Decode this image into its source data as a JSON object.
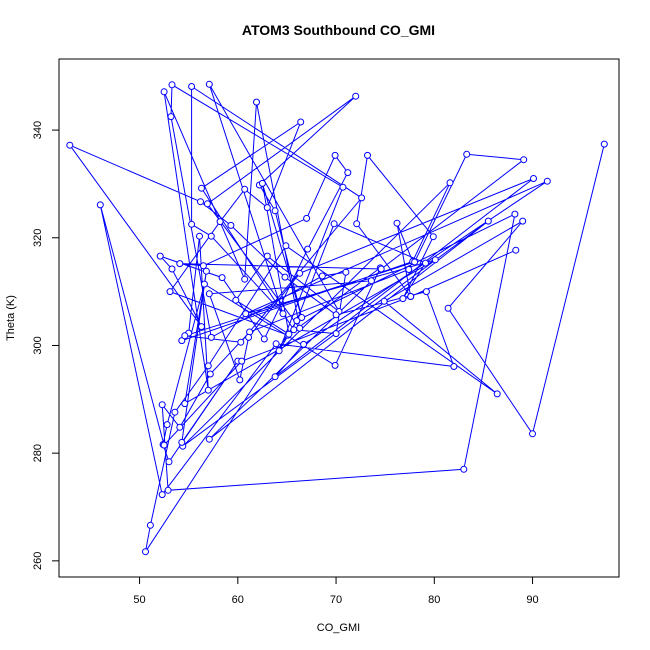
{
  "chart_data": {
    "type": "line",
    "title": "ATOM3 Southbound CO_GMI",
    "xlabel": "CO_GMI",
    "ylabel": "Theta (K)",
    "xlim": [
      41.8,
      98.8
    ],
    "ylim": [
      257.0,
      353.2
    ],
    "xticks": [
      50,
      60,
      70,
      80,
      90
    ],
    "yticks": [
      260,
      280,
      300,
      320,
      340
    ],
    "grid": false,
    "color": "#0000ff",
    "marker": "open-circle",
    "series": [
      {
        "name": "",
        "points": [
          [
            97.3,
            337.4
          ],
          [
            90.0,
            283.6
          ],
          [
            81.4,
            306.9
          ],
          [
            89.0,
            323.1
          ],
          [
            74.9,
            308.2
          ],
          [
            86.4,
            291.0
          ],
          [
            64.9,
            318.5
          ],
          [
            57.0,
            296.2
          ],
          [
            53.6,
            287.6
          ],
          [
            51.1,
            266.6
          ],
          [
            50.6,
            261.7
          ],
          [
            66.0,
            304.6
          ],
          [
            88.2,
            324.4
          ],
          [
            83.0,
            277.0
          ],
          [
            52.9,
            273.1
          ],
          [
            52.3,
            289.0
          ],
          [
            54.1,
            284.8
          ],
          [
            57.2,
            294.7
          ],
          [
            61.2,
            302.5
          ],
          [
            77.4,
            314.1
          ],
          [
            81.6,
            330.2
          ],
          [
            54.4,
            281.3
          ],
          [
            85.5,
            323.1
          ],
          [
            57.1,
            282.6
          ],
          [
            73.6,
            312.0
          ],
          [
            57.1,
            309.6
          ],
          [
            60.2,
            293.6
          ],
          [
            61.1,
            301.5
          ],
          [
            66.3,
            313.4
          ],
          [
            90.1,
            331.0
          ],
          [
            63.8,
            294.2
          ],
          [
            66.7,
            300.2
          ],
          [
            91.5,
            330.5
          ],
          [
            60.8,
            305.9
          ],
          [
            80.1,
            315.9
          ],
          [
            54.6,
            289.2
          ],
          [
            56.8,
            313.8
          ],
          [
            54.3,
            282.0
          ],
          [
            60.0,
            297.1
          ],
          [
            53.0,
            278.4
          ],
          [
            52.4,
            281.6
          ],
          [
            52.8,
            285.3
          ],
          [
            56.6,
            311.4
          ],
          [
            69.9,
            296.3
          ],
          [
            74.5,
            314.4
          ],
          [
            65.1,
            301.9
          ],
          [
            53.1,
            310.0
          ],
          [
            58.2,
            323.0
          ],
          [
            60.7,
            329.0
          ],
          [
            63.0,
            325.6
          ],
          [
            66.4,
            341.5
          ],
          [
            56.3,
            329.2
          ],
          [
            65.7,
            302.9
          ],
          [
            70.0,
            302.2
          ],
          [
            71.0,
            313.6
          ],
          [
            68.6,
            312.9
          ],
          [
            57.3,
            301.5
          ],
          [
            53.2,
            342.5
          ],
          [
            53.3,
            348.4
          ],
          [
            70.7,
            329.4
          ],
          [
            64.2,
            299.0
          ],
          [
            66.0,
            304.6
          ],
          [
            69.8,
            322.6
          ],
          [
            79.1,
            315.3
          ],
          [
            76.8,
            308.7
          ],
          [
            79.9,
            320.2
          ],
          [
            73.2,
            335.3
          ],
          [
            72.1,
            322.6
          ],
          [
            77.6,
            309.1
          ],
          [
            76.2,
            322.7
          ],
          [
            77.8,
            315.6
          ],
          [
            54.3,
            300.9
          ],
          [
            55.0,
            302.3
          ],
          [
            56.1,
            320.3
          ],
          [
            57.0,
            291.7
          ],
          [
            52.5,
            347.1
          ],
          [
            60.7,
            312.3
          ],
          [
            61.9,
            345.2
          ],
          [
            66.3,
            303.2
          ],
          [
            56.9,
            326.3
          ],
          [
            72.0,
            346.3
          ],
          [
            62.2,
            329.8
          ],
          [
            63.8,
            325.0
          ],
          [
            66.5,
            305.2
          ],
          [
            62.5,
            330.1
          ],
          [
            65.2,
            302.1
          ],
          [
            59.8,
            308.4
          ],
          [
            63.0,
            316.6
          ],
          [
            70.3,
            306.3
          ],
          [
            57.1,
            348.5
          ],
          [
            64.6,
            305.9
          ],
          [
            57.3,
            320.3
          ],
          [
            55.3,
            322.5
          ],
          [
            55.3,
            348.1
          ],
          [
            72.6,
            327.4
          ],
          [
            60.3,
            300.6
          ],
          [
            54.6,
            301.8
          ],
          [
            78.0,
            315.5
          ],
          [
            83.3,
            335.5
          ],
          [
            89.1,
            334.5
          ],
          [
            74.6,
            314.2
          ],
          [
            54.1,
            315.2
          ],
          [
            56.5,
            314.8
          ],
          [
            67.0,
            323.6
          ],
          [
            69.9,
            335.3
          ],
          [
            71.2,
            332.1
          ],
          [
            67.1,
            317.9
          ],
          [
            62.7,
            301.2
          ],
          [
            58.4,
            312.6
          ],
          [
            52.1,
            316.6
          ],
          [
            53.3,
            314.2
          ],
          [
            56.3,
            303.5
          ],
          [
            42.9,
            337.2
          ],
          [
            56.2,
            326.7
          ],
          [
            59.3,
            322.3
          ],
          [
            64.8,
            312.7
          ],
          [
            70.0,
            305.7
          ],
          [
            79.2,
            310.0
          ],
          [
            82.0,
            296.1
          ],
          [
            63.9,
            300.3
          ],
          [
            52.3,
            272.3
          ],
          [
            46.0,
            326.1
          ],
          [
            52.5,
            281.5
          ],
          [
            60.4,
            297.1
          ],
          [
            77.6,
            309.1
          ],
          [
            88.3,
            317.7
          ]
        ]
      }
    ]
  }
}
